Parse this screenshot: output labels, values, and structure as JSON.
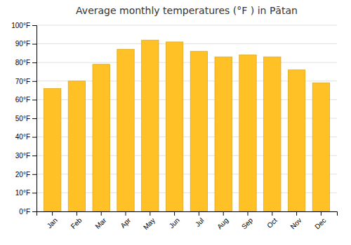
{
  "chart_data": {
    "type": "bar",
    "title": "Average monthly temperatures (°F ) in Pātan",
    "categories": [
      "Jan",
      "Feb",
      "Mar",
      "Apr",
      "May",
      "Jun",
      "Jul",
      "Aug",
      "Sep",
      "Oct",
      "Nov",
      "Dec"
    ],
    "values": [
      66,
      70,
      79,
      87,
      92,
      91,
      86,
      83,
      84,
      83,
      76,
      69
    ],
    "color": "#FFC125",
    "ylim": [
      0,
      100
    ],
    "yticks": [
      {
        "value": 0,
        "label": "0°F"
      },
      {
        "value": 10,
        "label": "10°F"
      },
      {
        "value": 20,
        "label": "20°F"
      },
      {
        "value": 30,
        "label": "30°F"
      },
      {
        "value": 40,
        "label": "40°F"
      },
      {
        "value": 50,
        "label": "50°F"
      },
      {
        "value": 60,
        "label": "60°F"
      },
      {
        "value": 70,
        "label": "70°F"
      },
      {
        "value": 80,
        "label": "80°F"
      },
      {
        "value": 90,
        "label": "90°F"
      },
      {
        "value": 100,
        "label": "100°F"
      }
    ],
    "grid": true
  }
}
